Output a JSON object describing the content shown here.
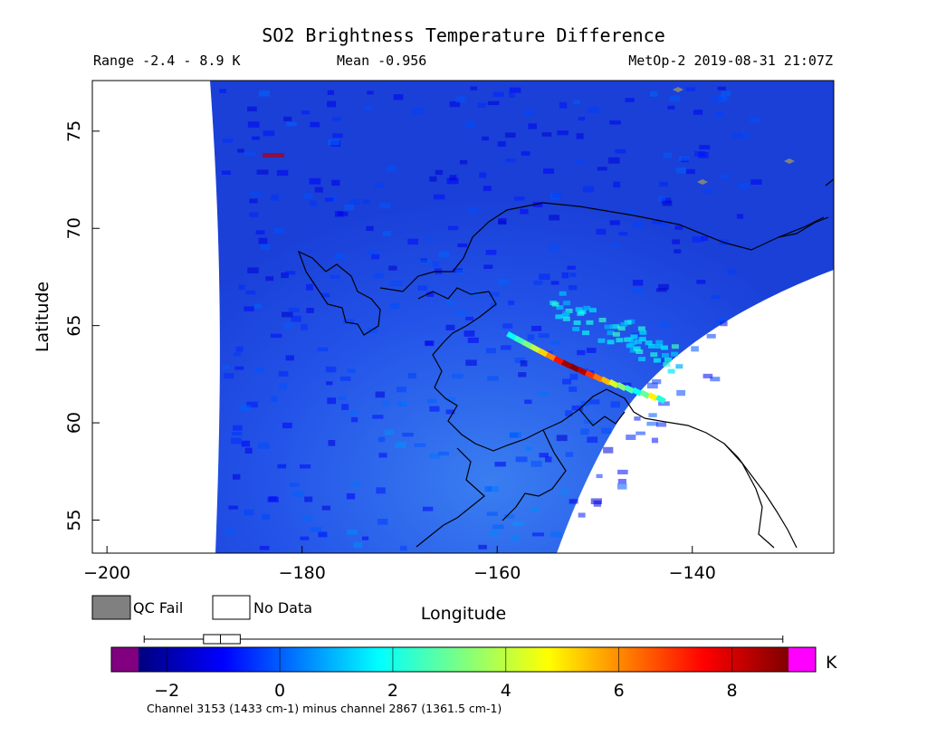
{
  "header": {
    "title": "SO2 Brightness Temperature Difference",
    "range": "Range -2.4 - 8.9 K",
    "mean": "Mean -0.956",
    "satellite_time": "MetOp-2 2019-08-31 21:07Z"
  },
  "axes": {
    "ylabel": "Latitude",
    "xlabel": "Longitude",
    "lat_ticks": [
      {
        "value": 55,
        "label": "55"
      },
      {
        "value": 60,
        "label": "60"
      },
      {
        "value": 65,
        "label": "65"
      },
      {
        "value": 70,
        "label": "70"
      },
      {
        "value": 75,
        "label": "75"
      }
    ],
    "lon_ticks": [
      {
        "value": -200,
        "label": "−200"
      },
      {
        "value": -180,
        "label": "−180"
      },
      {
        "value": -160,
        "label": "−160"
      },
      {
        "value": -140,
        "label": "−140"
      }
    ],
    "lon_range": [
      -201.5,
      -125.5
    ],
    "lat_range": [
      53.3,
      77.6
    ]
  },
  "legend": {
    "qc_fail_label": "QC Fail",
    "qc_fail_color": "#808080",
    "no_data_label": "No Data",
    "no_data_color": "#ffffff"
  },
  "colorbar": {
    "unit": "K",
    "ticks": [
      {
        "value": -2,
        "label": "−2"
      },
      {
        "value": 0,
        "label": "0"
      },
      {
        "value": 2,
        "label": "2"
      },
      {
        "value": 4,
        "label": "4"
      },
      {
        "value": 6,
        "label": "6"
      },
      {
        "value": 8,
        "label": "8"
      }
    ],
    "range": [
      -2.5,
      9.0
    ],
    "under_color": "#800080",
    "over_color": "#ff00ff",
    "caption": "Channel 3153 (1433 cm-1) minus channel 2867 (1361.5 cm-1)",
    "boxplot": {
      "min": -2.4,
      "q1": -1.35,
      "median": -1.05,
      "q3": -0.7,
      "max": 8.9
    }
  },
  "map": {
    "background_color": "#1a46e0",
    "plume_values": [
      1.8,
      2.5,
      3.2,
      4.0,
      5.2,
      6.1,
      7.4,
      8.6,
      8.9,
      8.4,
      7.0,
      6.2,
      5.5,
      4.3,
      3.4,
      2.6,
      1.9,
      3.0,
      4.8,
      2.2
    ],
    "qc_fail_pixels": 4
  }
}
